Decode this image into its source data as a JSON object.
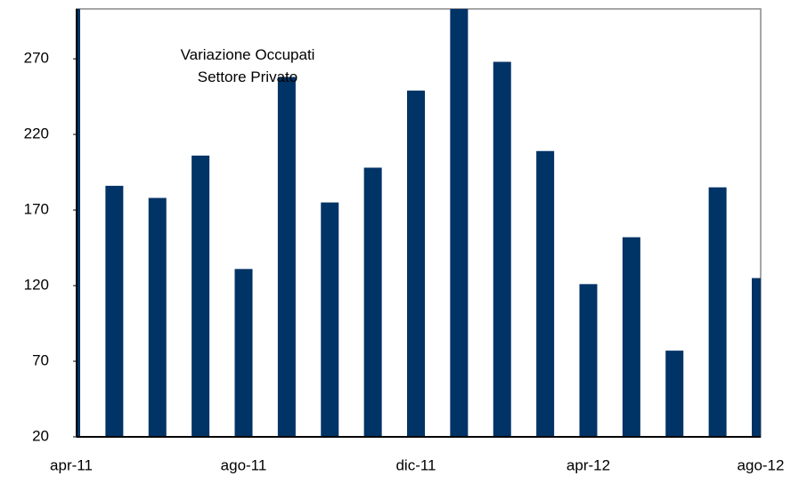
{
  "chart_data": {
    "type": "bar",
    "title": "Variazione Occupati Settore Privato",
    "categories": [
      "apr-11",
      null,
      null,
      null,
      "ago-11",
      null,
      null,
      null,
      "dic-11",
      null,
      null,
      null,
      "apr-12",
      null,
      null,
      null,
      "ago-12"
    ],
    "values": [
      320,
      186,
      178,
      206,
      131,
      258,
      175,
      198,
      249,
      310,
      268,
      209,
      121,
      152,
      77,
      185,
      125
    ],
    "color": "#003366",
    "ylim": [
      20,
      303
    ],
    "yticks": [
      20,
      70,
      120,
      170,
      220,
      270
    ],
    "grid": false
  }
}
